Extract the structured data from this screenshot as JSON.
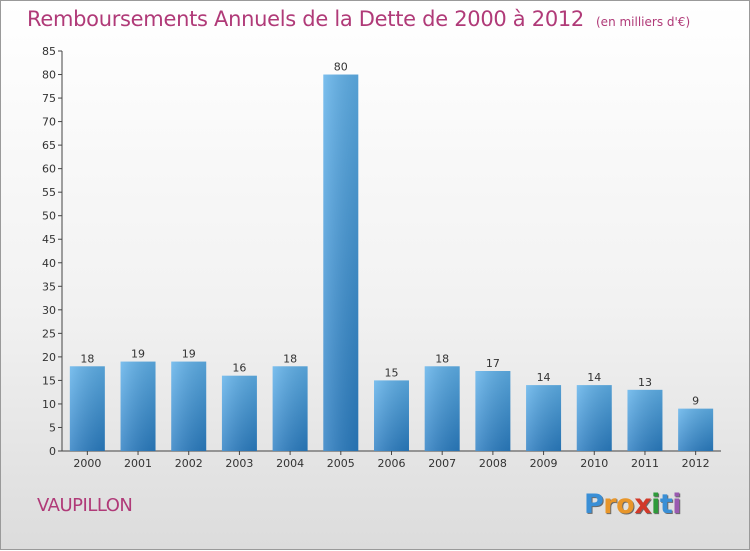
{
  "title": "Remboursements Annuels de la Dette de 2000 à 2012",
  "unit": "(en milliers d'€)",
  "commune": "VAUPILLON",
  "logo": {
    "letters": [
      "P",
      "r",
      "o",
      "x",
      "i",
      "t",
      "i"
    ],
    "colors": [
      "#3a8fd6",
      "#e8962a",
      "#e8962a",
      "#d23a2a",
      "#2e9a3a",
      "#3a8fd6",
      "#9a5ab0"
    ]
  },
  "colors": {
    "bar": "#3f97dc",
    "bar_light": "#5aaee8",
    "bar_dark": "#2a7cc0",
    "title": "#b03a78"
  },
  "chart_data": {
    "type": "bar",
    "categories": [
      "2000",
      "2001",
      "2002",
      "2003",
      "2004",
      "2005",
      "2006",
      "2007",
      "2008",
      "2009",
      "2010",
      "2011",
      "2012"
    ],
    "values": [
      18,
      19,
      19,
      16,
      18,
      80,
      15,
      18,
      17,
      14,
      14,
      13,
      9
    ],
    "yticks": [
      0,
      5,
      10,
      15,
      20,
      25,
      30,
      35,
      40,
      45,
      50,
      55,
      60,
      65,
      70,
      75,
      80,
      85
    ],
    "ylim": [
      0,
      85
    ],
    "grid": false
  }
}
